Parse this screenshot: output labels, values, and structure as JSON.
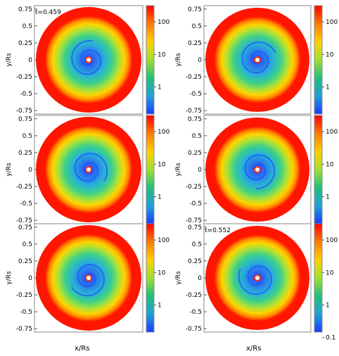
{
  "chart_data": [
    {
      "type": "heatmap",
      "panel": "top-left",
      "annotation": "t=0.459",
      "ylabel": "y/Rs",
      "xlabel": "",
      "yticks": [
        "0.75",
        "0.5",
        "0.25",
        "0",
        "-0.25",
        "-0.5",
        "-0.75"
      ],
      "ylim": [
        -0.8,
        0.8
      ],
      "colorbar": {
        "scale": "log",
        "ticks": [
          "100",
          "10",
          "1"
        ]
      }
    },
    {
      "type": "heatmap",
      "panel": "top-right",
      "annotation": "",
      "ylabel": "y/Rs",
      "xlabel": "",
      "yticks": [
        "0.75",
        "0.5",
        "0.25",
        "0",
        "-0.25",
        "-0.5",
        "-0.75"
      ],
      "ylim": [
        -0.8,
        0.8
      ],
      "colorbar": {
        "scale": "log",
        "ticks": [
          "100",
          "10",
          "1"
        ]
      }
    },
    {
      "type": "heatmap",
      "panel": "middle-left",
      "annotation": "",
      "ylabel": "y/Rs",
      "xlabel": "",
      "yticks": [
        "0.75",
        "0.5",
        "0.25",
        "0",
        "-0.25",
        "-0.5",
        "-0.75"
      ],
      "ylim": [
        -0.8,
        0.8
      ],
      "colorbar": {
        "scale": "log",
        "ticks": [
          "100",
          "10",
          "1"
        ]
      }
    },
    {
      "type": "heatmap",
      "panel": "middle-right",
      "annotation": "",
      "ylabel": "y/Rs",
      "xlabel": "",
      "yticks": [
        "0.75",
        "0.5",
        "0.25",
        "0",
        "-0.25",
        "-0.5",
        "-0.75"
      ],
      "ylim": [
        -0.8,
        0.8
      ],
      "colorbar": {
        "scale": "log",
        "ticks": [
          "100",
          "10",
          "1"
        ]
      }
    },
    {
      "type": "heatmap",
      "panel": "bottom-left",
      "annotation": "",
      "ylabel": "y/Rs",
      "xlabel": "x/Rs",
      "yticks": [
        "0.75",
        "0.5",
        "0.25",
        "0",
        "-0.25",
        "-0.5",
        "-0.75"
      ],
      "ylim": [
        -0.8,
        0.8
      ],
      "colorbar": {
        "scale": "log",
        "ticks": [
          "100",
          "10",
          "1"
        ]
      }
    },
    {
      "type": "heatmap",
      "panel": "bottom-right",
      "annotation": "t=0.552",
      "ylabel": "y/Rs",
      "xlabel": "x/Rs",
      "yticks": [
        "0.75",
        "0.5",
        "0.25",
        "0",
        "-0.25",
        "-0.5",
        "-0.75"
      ],
      "ylim": [
        -0.8,
        0.8
      ],
      "colorbar": {
        "scale": "log",
        "ticks": [
          "100",
          "10",
          "1",
          "0.1"
        ]
      }
    }
  ],
  "colors": {
    "outer": "#ff1500",
    "inner": "#1a50ff",
    "cb": [
      "#ff0000",
      "#ff7a00",
      "#ffd000",
      "#9fe030",
      "#20c07a",
      "#20a0d8",
      "#1a3cff"
    ]
  }
}
